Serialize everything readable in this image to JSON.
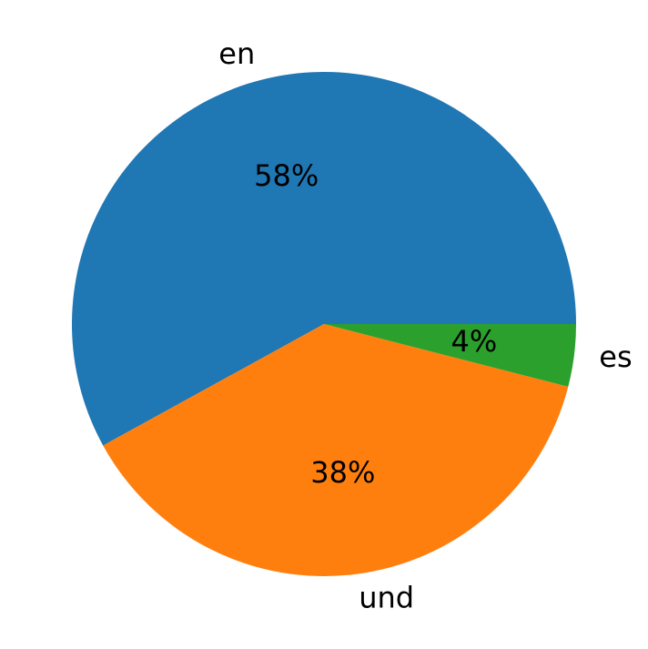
{
  "chart_data": {
    "type": "pie",
    "categories": [
      "en",
      "und",
      "es"
    ],
    "values": [
      58,
      38,
      4
    ],
    "value_labels": [
      "58%",
      "38%",
      "4%"
    ],
    "colors": [
      "#1f77b4",
      "#ff7f0e",
      "#2ca02c"
    ]
  }
}
